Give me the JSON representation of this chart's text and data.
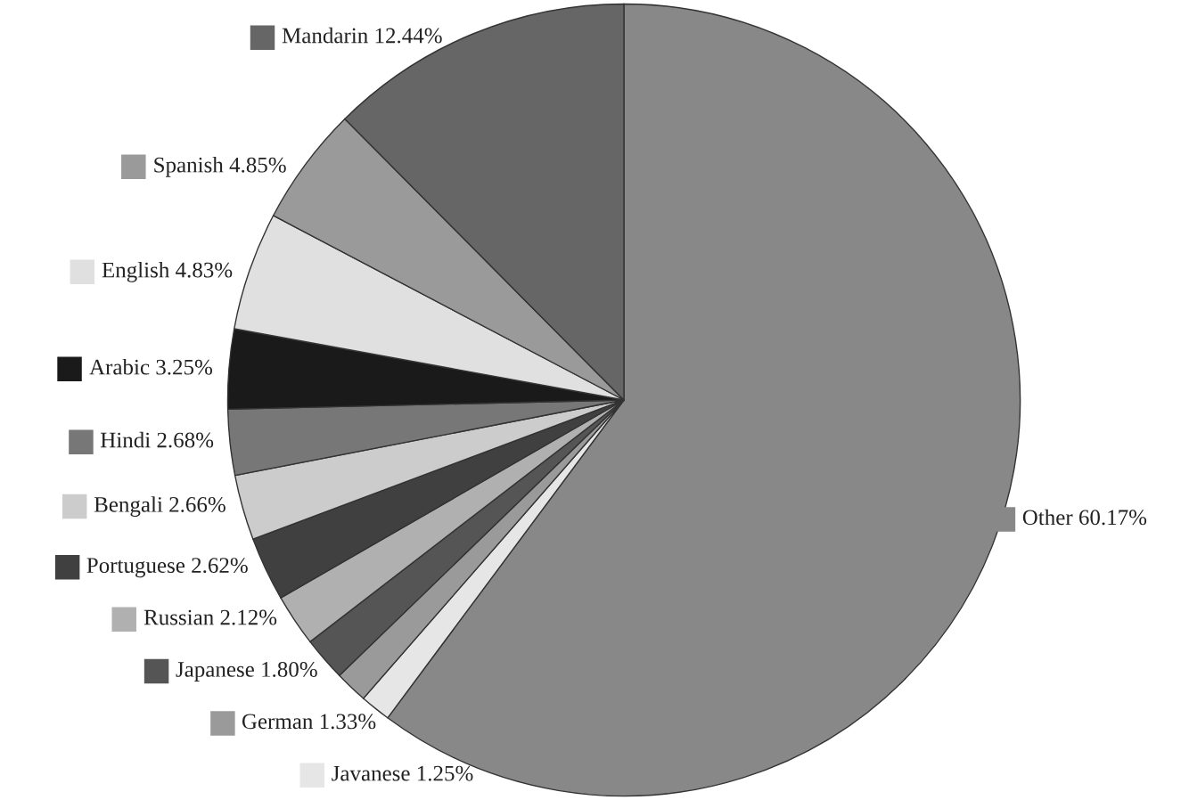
{
  "chart_data": {
    "type": "pie",
    "legend": "left",
    "categories": [
      "Other",
      "Javanese",
      "German",
      "Japanese",
      "Russian",
      "Portuguese",
      "Bengali",
      "Hindi",
      "Arabic",
      "English",
      "Spanish",
      "Mandarin"
    ],
    "values": [
      60.17,
      1.25,
      1.33,
      1.8,
      2.12,
      2.62,
      2.66,
      2.68,
      3.25,
      4.83,
      4.85,
      12.44
    ],
    "value_labels": [
      "60.17%",
      "1.25%",
      "1.33%",
      "1.80%",
      "2.12%",
      "2.62%",
      "2.66%",
      "2.68%",
      "3.25%",
      "4.83%",
      "4.85%",
      "12.44%"
    ],
    "colors": [
      "#888888",
      "#e6e6e6",
      "#9a9a9a",
      "#555555",
      "#b0b0b0",
      "#404040",
      "#cccccc",
      "#777777",
      "#1a1a1a",
      "#e0e0e0",
      "#9a9a9a",
      "#666666"
    ]
  }
}
